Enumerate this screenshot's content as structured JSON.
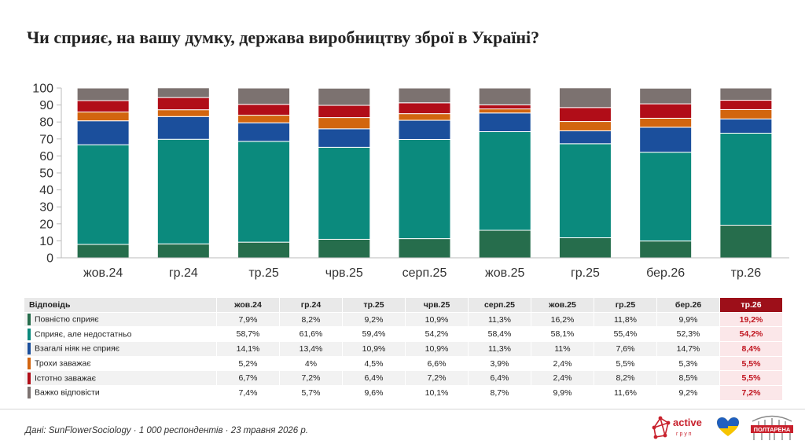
{
  "title": "Чи сприяє, на вашу думку, держава виробництву зброї в Україні?",
  "chart_data": {
    "type": "bar",
    "stacked": true,
    "title": "Чи сприяє, на вашу думку, держава виробництву зброї в Україні?",
    "categories": [
      "жов.24",
      "гр.24",
      "тр.25",
      "чрв.25",
      "серп.25",
      "жов.25",
      "гр.25",
      "бер.26",
      "тр.26"
    ],
    "ylim": [
      0,
      100
    ],
    "yticks": [
      0,
      10,
      20,
      30,
      40,
      50,
      60,
      70,
      80,
      90,
      100
    ],
    "series": [
      {
        "name": "Повністю сприяє",
        "color": "#266d4c",
        "values": [
          7.9,
          8.2,
          9.2,
          10.9,
          11.3,
          16.2,
          11.8,
          9.9,
          19.2
        ],
        "labels": [
          "7,9%",
          "8,2%",
          "9,2%",
          "10,9%",
          "11,3%",
          "16,2%",
          "11,8%",
          "9,9%",
          "19,2%"
        ]
      },
      {
        "name": "Сприяє, але недостатньо",
        "color": "#0b8a7d",
        "values": [
          58.7,
          61.6,
          59.4,
          54.2,
          58.4,
          58.1,
          55.4,
          52.3,
          54.2
        ],
        "labels": [
          "58,7%",
          "61,6%",
          "59,4%",
          "54,2%",
          "58,4%",
          "58,1%",
          "55,4%",
          "52,3%",
          "54,2%"
        ]
      },
      {
        "name": "Взагалі ніяк не сприяє",
        "color": "#1b4f9c",
        "values": [
          14.1,
          13.4,
          10.9,
          10.9,
          11.3,
          11,
          7.6,
          14.7,
          8.4
        ],
        "labels": [
          "14,1%",
          "13,4%",
          "10,9%",
          "10,9%",
          "11,3%",
          "11%",
          "7,6%",
          "14,7%",
          "8,4%"
        ]
      },
      {
        "name": "Трохи заважає",
        "color": "#d2650f",
        "values": [
          5.2,
          4,
          4.5,
          6.6,
          3.9,
          2.4,
          5.5,
          5.3,
          5.5
        ],
        "labels": [
          "5,2%",
          "4%",
          "4,5%",
          "6,6%",
          "3,9%",
          "2,4%",
          "5,5%",
          "5,3%",
          "5,5%"
        ]
      },
      {
        "name": "Істотно заважає",
        "color": "#b10d18",
        "values": [
          6.7,
          7.2,
          6.4,
          7.2,
          6.4,
          2.4,
          8.2,
          8.5,
          5.5
        ],
        "labels": [
          "6,7%",
          "7,2%",
          "6,4%",
          "7,2%",
          "6,4%",
          "2,4%",
          "8,2%",
          "8,5%",
          "5,5%"
        ]
      },
      {
        "name": "Важко відповісти",
        "color": "#7c7270",
        "values": [
          7.4,
          5.7,
          9.6,
          10.1,
          8.7,
          9.9,
          11.6,
          9.2,
          7.2
        ],
        "labels": [
          "7,4%",
          "5,7%",
          "9,6%",
          "10,1%",
          "8,7%",
          "9,9%",
          "11,6%",
          "9,2%",
          "7,2%"
        ]
      }
    ],
    "legend": "table-below",
    "grid": false
  },
  "table": {
    "header_label": "Відповідь"
  },
  "source": "Дані: SunFlowerSociology · 1 000 респондентів · 23 травня 2026 р.",
  "logos": {
    "active": "active",
    "active_sub": "г р у п",
    "poltarena": "ПОЛТАРЕНА"
  }
}
